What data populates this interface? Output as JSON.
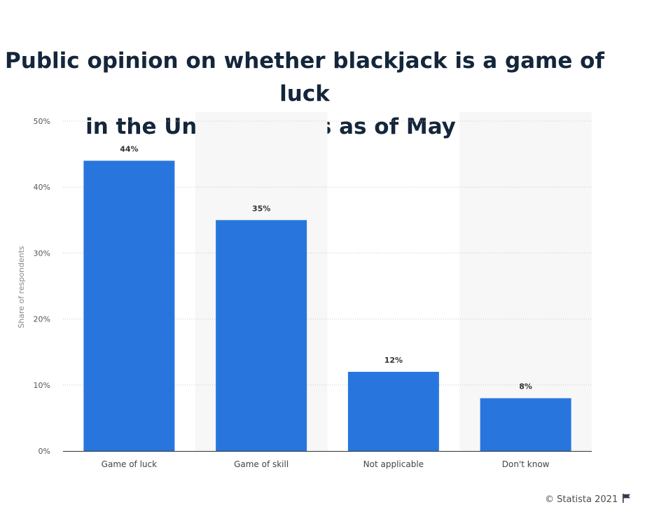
{
  "title_line1": "Public opinion on whether blackjack is a game of luck",
  "title_line2": "in the United States as of May 2020",
  "footer": {
    "copyright": "© Statista 2021",
    "flag_icon": "flag-icon"
  },
  "colors": {
    "bar": "#2876dd",
    "band": "#f7f7f7",
    "grid": "#cccccc",
    "axis": "#333333",
    "title": "#14263b"
  },
  "chart_data": {
    "type": "bar",
    "title": "Public opinion on whether blackjack is a game of luck in the United States as of May 2020",
    "categories": [
      "Game of luck",
      "Game of skill",
      "Not applicable",
      "Don't know"
    ],
    "values": [
      44,
      35,
      12,
      8
    ],
    "value_labels": [
      "44%",
      "35%",
      "12%",
      "8%"
    ],
    "ylabel": "Share of respondents",
    "ylim": [
      0,
      50
    ],
    "yticks": [
      0,
      10,
      20,
      30,
      40,
      50
    ],
    "ytick_labels": [
      "0%",
      "10%",
      "20%",
      "30%",
      "40%",
      "50%"
    ],
    "grid": true,
    "unit": "%"
  }
}
